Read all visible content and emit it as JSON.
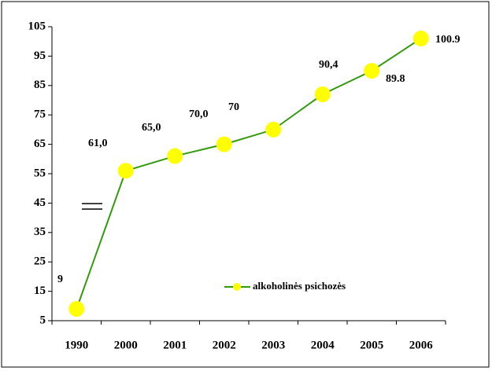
{
  "chart_data": {
    "type": "line",
    "categories": [
      "1990",
      "2000",
      "2001",
      "2002",
      "2003",
      "2004",
      "2005",
      "2006"
    ],
    "series": [
      {
        "name": "alkoholinės psichozės",
        "color": "#339a0e",
        "marker_color": "#ffff00",
        "values": [
          9,
          56,
          61,
          65,
          70,
          82,
          90,
          101
        ]
      }
    ],
    "annotations": [
      "9",
      "61,0",
      "65,0",
      "70,0",
      "70",
      "90,4",
      "89.8",
      "100.9"
    ],
    "ylim": [
      5,
      105
    ],
    "yticks": [
      5,
      15,
      25,
      35,
      45,
      55,
      65,
      75,
      85,
      95,
      105
    ],
    "grid": false,
    "legend": "lower center"
  }
}
